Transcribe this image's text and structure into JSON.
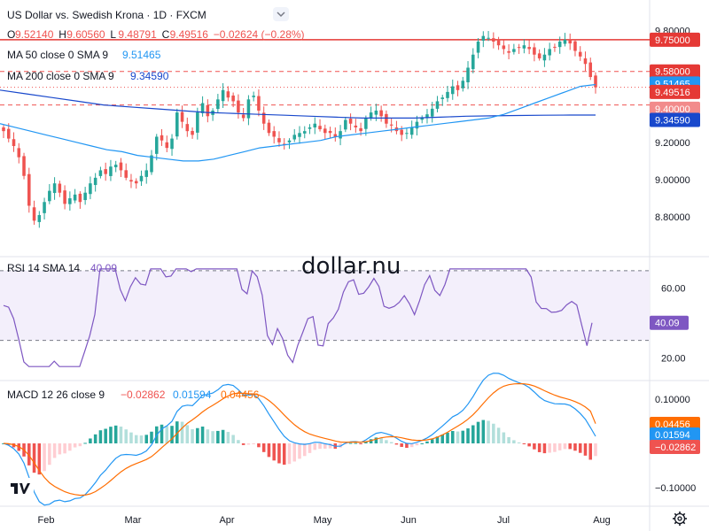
{
  "header": {
    "title": "US Dollar vs. Swedish Krona · 1D · FXCM",
    "ohlc": [
      {
        "k": "O",
        "v": "9.52140"
      },
      {
        "k": "H",
        "v": "9.60560"
      },
      {
        "k": "L",
        "v": "9.48791"
      },
      {
        "k": "C",
        "v": "9.49516"
      },
      {
        "k": "",
        "v": "−0.02624 (−0.28%)"
      }
    ],
    "ma50_label": "MA 50 close 0 SMA 9",
    "ma50_value": "9.51465",
    "ma200_label": "MA 200 close 0 SMA 9",
    "ma200_value": "9.34590"
  },
  "watermark": "dollar.nu",
  "colors": {
    "up": "#26a69a",
    "down": "#ef5350",
    "ma50": "#2196f3",
    "ma200": "#1848cc",
    "rsi": "#7e57c2",
    "rsi_band": "#f3effb",
    "macd": "#2196f3",
    "signal": "#ff6d00",
    "resistance": "#e53935",
    "dashed": "#ef5350"
  },
  "price_pane": {
    "axis_ticks": [
      "9.80000",
      "9.60000",
      "9.40000",
      "9.20000",
      "9.00000",
      "8.80000"
    ],
    "tags": [
      {
        "value": "9.75000",
        "color": "#e53935"
      },
      {
        "value": "9.58000",
        "color": "#e53935"
      },
      {
        "value": "9.51465",
        "color": "#2196f3"
      },
      {
        "value": "9.49516",
        "color": "#e53935"
      },
      {
        "value": "9.40000",
        "color": "#f28b8b"
      },
      {
        "value": "9.34590",
        "color": "#1848cc"
      }
    ]
  },
  "rsi_pane": {
    "label": "RSI 14 SMA 14",
    "value": "40.09",
    "axis_ticks": [
      "60.00",
      "20.00"
    ],
    "tag": "40.09"
  },
  "macd_pane": {
    "label": "MACD 12 26 close 9",
    "v1": "−0.02862",
    "v2": "0.01594",
    "v3": "0.04456",
    "axis_ticks": [
      "0.10000",
      "−0.10000"
    ],
    "tags": [
      {
        "value": "0.04456",
        "color": "#ff6d00"
      },
      {
        "value": "0.01594",
        "color": "#2196f3"
      },
      {
        "value": "−0.02862",
        "color": "#ef5350"
      }
    ]
  },
  "time_axis": [
    "Feb",
    "Mar",
    "Apr",
    "May",
    "Jun",
    "Jul",
    "Aug"
  ],
  "chart_data": {
    "type": "candlestick",
    "x_labels": [
      "Feb",
      "Mar",
      "Apr",
      "May",
      "Jun",
      "Jul",
      "Aug"
    ],
    "price_range": [
      8.72,
      9.83
    ],
    "horizontal_levels": {
      "resistance": 9.75,
      "dashed": [
        9.58,
        9.4
      ]
    },
    "close_series": [
      9.26,
      9.22,
      9.18,
      9.12,
      9.02,
      8.86,
      8.78,
      8.81,
      8.88,
      8.94,
      8.98,
      8.93,
      8.87,
      8.9,
      8.92,
      8.88,
      8.93,
      8.98,
      9.01,
      9.05,
      9.03,
      9.07,
      9.08,
      9.05,
      9.01,
      8.99,
      8.98,
      9.02,
      9.05,
      9.13,
      9.23,
      9.21,
      9.17,
      9.22,
      9.36,
      9.31,
      9.26,
      9.24,
      9.36,
      9.41,
      9.34,
      9.37,
      9.43,
      9.48,
      9.44,
      9.42,
      9.36,
      9.33,
      9.43,
      9.45,
      9.37,
      9.3,
      9.25,
      9.23,
      9.2,
      9.19,
      9.21,
      9.24,
      9.25,
      9.26,
      9.28,
      9.3,
      9.27,
      9.25,
      9.25,
      9.23,
      9.26,
      9.32,
      9.3,
      9.28,
      9.26,
      9.33,
      9.36,
      9.37,
      9.34,
      9.3,
      9.29,
      9.26,
      9.24,
      9.25,
      9.28,
      9.31,
      9.33,
      9.35,
      9.38,
      9.42,
      9.44,
      9.47,
      9.5,
      9.48,
      9.53,
      9.6,
      9.67,
      9.74,
      9.77,
      9.76,
      9.74,
      9.72,
      9.7,
      9.68,
      9.7,
      9.71,
      9.72,
      9.7,
      9.67,
      9.65,
      9.67,
      9.7,
      9.71,
      9.74,
      9.75,
      9.73,
      9.69,
      9.66,
      9.62,
      9.55,
      9.495
    ],
    "ma50": [
      9.3,
      9.28,
      9.26,
      9.24,
      9.22,
      9.2,
      9.18,
      9.16,
      9.15,
      9.13,
      9.12,
      9.11,
      9.1,
      9.1,
      9.11,
      9.13,
      9.15,
      9.17,
      9.18,
      9.19,
      9.2,
      9.21,
      9.23,
      9.24,
      9.25,
      9.26,
      9.27,
      9.28,
      9.29,
      9.3,
      9.31,
      9.32,
      9.33,
      9.35,
      9.38,
      9.41,
      9.44,
      9.47,
      9.5,
      9.51
    ],
    "ma200": [
      9.48,
      9.46,
      9.44,
      9.42,
      9.4,
      9.39,
      9.38,
      9.37,
      9.36,
      9.355,
      9.35,
      9.345,
      9.34,
      9.335,
      9.33,
      9.33,
      9.33,
      9.335,
      9.34,
      9.342,
      9.344,
      9.345,
      9.346,
      9.346
    ],
    "rsi": {
      "range": [
        10,
        75
      ],
      "levels": [
        70,
        30
      ],
      "last": 40.09
    },
    "macd": {
      "range": [
        -0.13,
        0.13
      ],
      "last_macd": 0.01594,
      "last_signal": 0.04456,
      "last_hist": -0.02862
    }
  }
}
